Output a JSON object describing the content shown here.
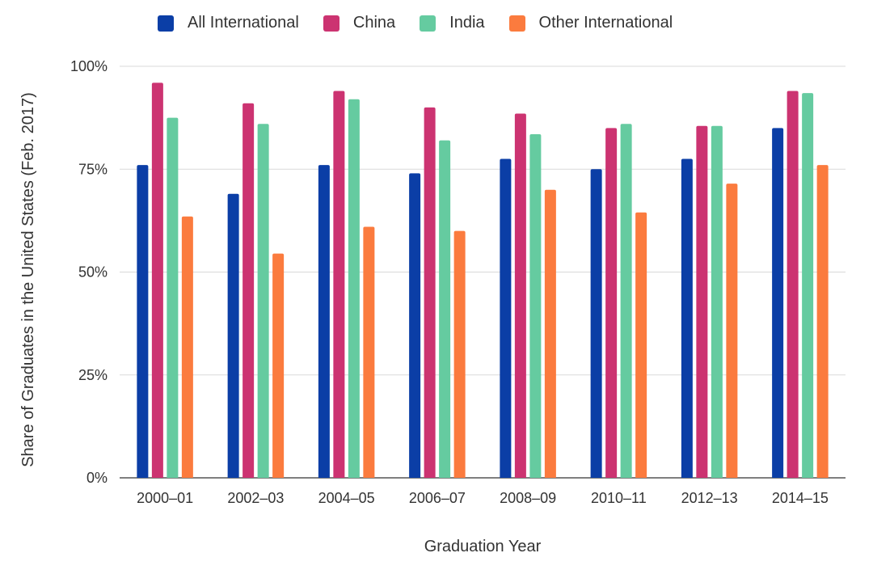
{
  "chart_data": {
    "type": "bar",
    "title": "",
    "xlabel": "Graduation Year",
    "ylabel": "Share of Graduates in the United States (Feb. 2017)",
    "ylim": [
      0,
      100
    ],
    "yticks": [
      "0%",
      "25%",
      "50%",
      "75%",
      "100%"
    ],
    "ytick_values": [
      0,
      25,
      50,
      75,
      100
    ],
    "grid": true,
    "legend_position": "top",
    "categories": [
      "2000–01",
      "2002–03",
      "2004–05",
      "2006–07",
      "2008–09",
      "2010–11",
      "2012–13",
      "2014–15"
    ],
    "series": [
      {
        "name": "All International",
        "color": "#0b3ea6",
        "values": [
          76,
          69,
          76,
          74,
          77.5,
          75,
          77.5,
          85
        ]
      },
      {
        "name": "China",
        "color": "#cc3371",
        "values": [
          96,
          91,
          94,
          90,
          88.5,
          85,
          85.5,
          94
        ]
      },
      {
        "name": "India",
        "color": "#65cba0",
        "values": [
          87.5,
          86,
          92,
          82,
          83.5,
          86,
          85.5,
          93.5
        ]
      },
      {
        "name": "Other International",
        "color": "#fb7b3e",
        "values": [
          63.5,
          54.5,
          61,
          60,
          70,
          64.5,
          71.5,
          76
        ]
      }
    ]
  }
}
